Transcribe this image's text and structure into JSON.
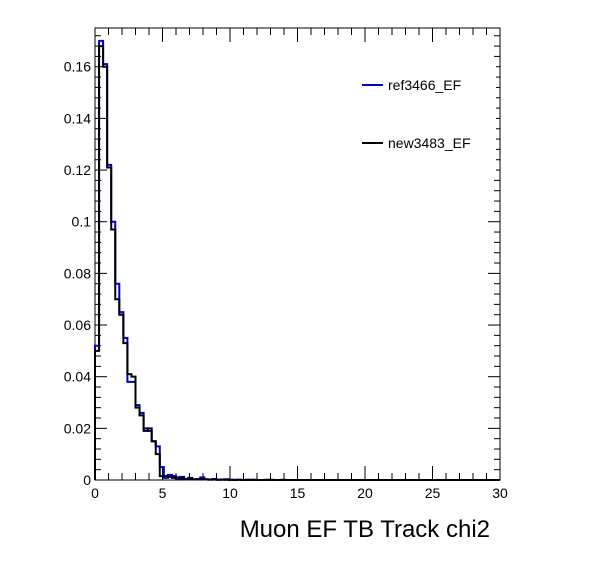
{
  "chart_data": {
    "type": "line",
    "style": "step-histogram",
    "xlabel": "Muon EF TB Track chi2",
    "ylabel": "",
    "xlim": [
      0,
      30
    ],
    "ylim": [
      0,
      0.175
    ],
    "xticks": [
      "0",
      "5",
      "10",
      "15",
      "20",
      "25",
      "30"
    ],
    "yticks": [
      "0",
      "0.02",
      "0.04",
      "0.06",
      "0.08",
      "0.1",
      "0.12",
      "0.14",
      "0.16"
    ],
    "bin_width": 0.3,
    "grid": false,
    "legend_position": "top-right",
    "series": [
      {
        "name": "ref3466_EF",
        "color": "#0000cc",
        "values": [
          0.052,
          0.17,
          0.161,
          0.122,
          0.1,
          0.076,
          0.065,
          0.055,
          0.038,
          0.038,
          0.029,
          0.026,
          0.02,
          0.019,
          0.015,
          0.013,
          0.005,
          0.0008,
          0.002,
          0.0015,
          0.0005,
          0.0012,
          0.0003,
          0.0008,
          0.0002,
          0.0004,
          0.001,
          0.0002,
          0.0001,
          0.0004,
          0.0001,
          0.0001,
          0.0003,
          0.0,
          0.0001,
          0.0001,
          0.0,
          0.0001,
          0.0,
          0.0001,
          0.0,
          0.0,
          0.0001,
          0.0,
          0.0,
          0.0,
          0.0001,
          0.0,
          0.0,
          0.0,
          0.0,
          0.0,
          0.0,
          0.0,
          0.0,
          0.0,
          0.0,
          0.0,
          0.0,
          0.0,
          0.0,
          0.0,
          0.0,
          0.0,
          0.0,
          0.0,
          0.0,
          0.0,
          0.0,
          0.0,
          0.0,
          0.0,
          0.0,
          0.0,
          0.0,
          0.0,
          0.0,
          0.0,
          0.0,
          0.0,
          0.0,
          0.0,
          0.0,
          0.0,
          0.0,
          0.0,
          0.0,
          0.0,
          0.0,
          0.0,
          0.0,
          0.0,
          0.0,
          0.0,
          0.0,
          0.0,
          0.0,
          0.0,
          0.0,
          0.0
        ]
      },
      {
        "name": "new3483_EF",
        "color": "#000000",
        "values": [
          0.05,
          0.168,
          0.16,
          0.121,
          0.097,
          0.07,
          0.064,
          0.053,
          0.041,
          0.04,
          0.028,
          0.025,
          0.019,
          0.02,
          0.015,
          0.01,
          0.0015,
          0.0015,
          0.0012,
          0.0008,
          0.001,
          0.0006,
          0.0004,
          0.0006,
          0.0003,
          0.0003,
          0.0004,
          0.0003,
          0.0002,
          0.0002,
          0.0001,
          0.0002,
          0.0001,
          0.0001,
          0.0,
          0.0001,
          0.0,
          0.0,
          0.0001,
          0.0,
          0.0,
          0.0,
          0.0,
          0.0001,
          0.0,
          0.0,
          0.0,
          0.0,
          0.0,
          0.0,
          0.0,
          0.0,
          0.0,
          0.0,
          0.0,
          0.0,
          0.0,
          0.0,
          0.0,
          0.0,
          0.0,
          0.0,
          0.0,
          0.0,
          0.0,
          0.0,
          0.0,
          0.0,
          0.0,
          0.0,
          0.0,
          0.0,
          0.0,
          0.0,
          0.0,
          0.0,
          0.0,
          0.0,
          0.0,
          0.0,
          0.0,
          0.0,
          0.0,
          0.0,
          0.0,
          0.0,
          0.0,
          0.0,
          0.0,
          0.0,
          0.0,
          0.0,
          0.0,
          0.0,
          0.0,
          0.0,
          0.0,
          0.0,
          0.0,
          0.0
        ]
      }
    ]
  }
}
